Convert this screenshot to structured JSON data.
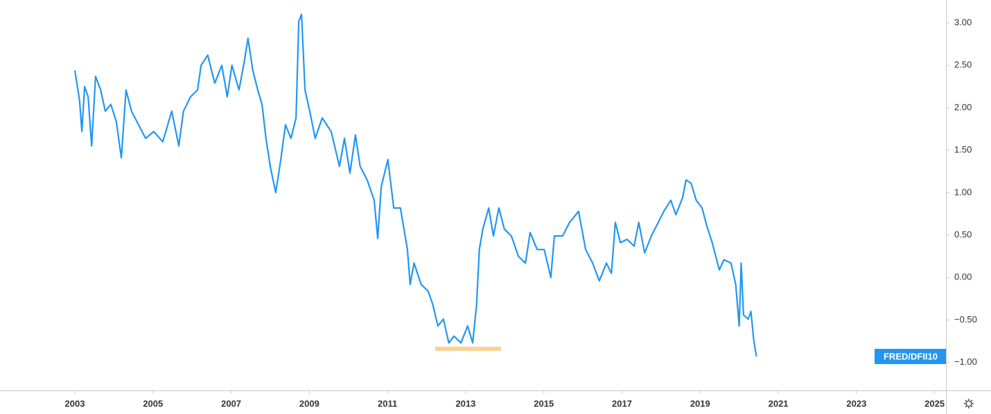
{
  "chart_data": {
    "type": "line",
    "x": [
      2003.0,
      2003.12,
      2003.18,
      2003.25,
      2003.34,
      2003.43,
      2003.53,
      2003.66,
      2003.78,
      2003.92,
      2004.06,
      2004.19,
      2004.31,
      2004.45,
      2004.63,
      2004.81,
      2005.02,
      2005.25,
      2005.48,
      2005.66,
      2005.78,
      2005.96,
      2006.14,
      2006.23,
      2006.4,
      2006.58,
      2006.76,
      2006.9,
      2007.02,
      2007.2,
      2007.33,
      2007.43,
      2007.55,
      2007.68,
      2007.79,
      2007.89,
      2008.0,
      2008.14,
      2008.27,
      2008.39,
      2008.53,
      2008.66,
      2008.73,
      2008.8,
      2008.89,
      2009.01,
      2009.15,
      2009.33,
      2009.56,
      2009.77,
      2009.9,
      2010.04,
      2010.18,
      2010.3,
      2010.48,
      2010.66,
      2010.75,
      2010.84,
      2011.01,
      2011.16,
      2011.33,
      2011.51,
      2011.58,
      2011.68,
      2011.86,
      2012.04,
      2012.16,
      2012.29,
      2012.43,
      2012.57,
      2012.7,
      2012.88,
      2013.05,
      2013.18,
      2013.28,
      2013.35,
      2013.44,
      2013.59,
      2013.71,
      2013.85,
      2013.99,
      2014.17,
      2014.35,
      2014.53,
      2014.65,
      2014.83,
      2015.01,
      2015.18,
      2015.27,
      2015.48,
      2015.66,
      2015.89,
      2016.07,
      2016.25,
      2016.42,
      2016.6,
      2016.73,
      2016.83,
      2016.96,
      2017.13,
      2017.31,
      2017.43,
      2017.58,
      2017.75,
      2017.93,
      2018.07,
      2018.25,
      2018.38,
      2018.55,
      2018.64,
      2018.77,
      2018.9,
      2019.05,
      2019.17,
      2019.31,
      2019.49,
      2019.61,
      2019.79,
      2019.91,
      2020.0,
      2020.05,
      2020.11,
      2020.23,
      2020.3,
      2020.37,
      2020.44
    ],
    "series": [
      {
        "name": "FRED/DFII10",
        "color": "#2196f3",
        "values": [
          2.44,
          2.09,
          1.72,
          2.25,
          2.13,
          1.55,
          2.37,
          2.21,
          1.96,
          2.04,
          1.84,
          1.41,
          2.21,
          1.96,
          1.8,
          1.64,
          1.72,
          1.6,
          1.96,
          1.55,
          1.96,
          2.13,
          2.21,
          2.5,
          2.62,
          2.29,
          2.5,
          2.13,
          2.5,
          2.21,
          2.53,
          2.82,
          2.45,
          2.21,
          2.04,
          1.64,
          1.31,
          1.0,
          1.39,
          1.8,
          1.64,
          1.88,
          3.02,
          3.1,
          2.21,
          1.96,
          1.64,
          1.88,
          1.72,
          1.31,
          1.64,
          1.23,
          1.68,
          1.31,
          1.15,
          0.91,
          0.46,
          1.07,
          1.39,
          0.82,
          0.82,
          0.33,
          -0.08,
          0.17,
          -0.08,
          -0.16,
          -0.32,
          -0.57,
          -0.49,
          -0.77,
          -0.69,
          -0.77,
          -0.57,
          -0.77,
          -0.32,
          0.33,
          0.57,
          0.82,
          0.49,
          0.82,
          0.57,
          0.49,
          0.25,
          0.17,
          0.53,
          0.33,
          0.33,
          0.0,
          0.49,
          0.49,
          0.65,
          0.78,
          0.33,
          0.17,
          -0.04,
          0.17,
          0.05,
          0.65,
          0.41,
          0.45,
          0.37,
          0.65,
          0.29,
          0.49,
          0.65,
          0.78,
          0.91,
          0.74,
          0.94,
          1.15,
          1.11,
          0.91,
          0.82,
          0.61,
          0.41,
          0.09,
          0.21,
          0.17,
          -0.08,
          -0.57,
          0.17,
          -0.44,
          -0.49,
          -0.4,
          -0.73,
          -0.93
        ]
      }
    ],
    "xlim": [
      2001.085,
      2025.29
    ],
    "xticks": [
      2003,
      2005,
      2007,
      2009,
      2011,
      2013,
      2015,
      2017,
      2019,
      2021,
      2023,
      2025
    ],
    "ylim": [
      -1.33,
      3.27
    ],
    "yticks": [
      {
        "value": -1,
        "label": "−1.00"
      },
      {
        "value": -0.5,
        "label": "−0.50"
      },
      {
        "value": 0,
        "label": "0.00"
      },
      {
        "value": 0.5,
        "label": "0.50"
      },
      {
        "value": 1,
        "label": "1.00"
      },
      {
        "value": 1.5,
        "label": "1.50"
      },
      {
        "value": 2,
        "label": "2.00"
      },
      {
        "value": 2.5,
        "label": "2.50"
      },
      {
        "value": 3,
        "label": "3.00"
      }
    ],
    "grid": false
  }
}
